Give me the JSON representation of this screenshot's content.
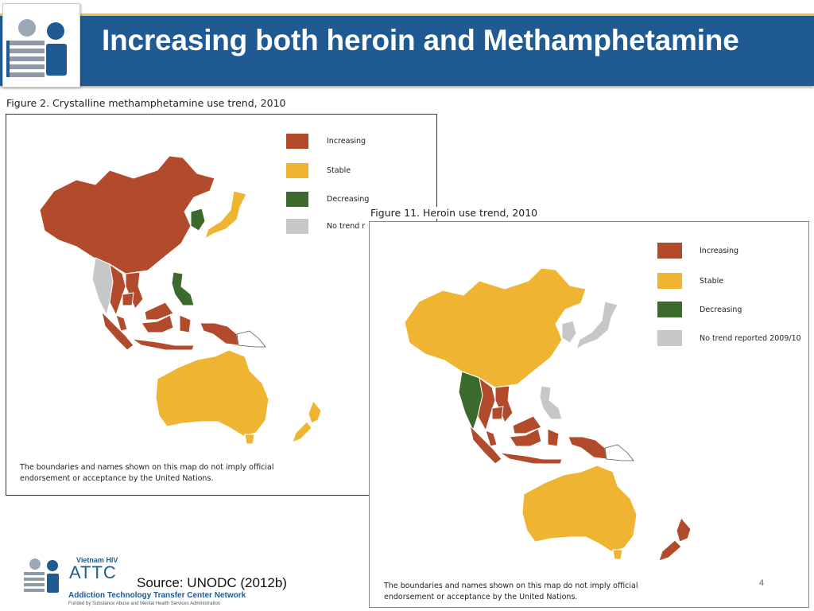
{
  "slide": {
    "title": "Increasing both heroin and Methamphetamine",
    "source": "Source: UNODC (2012b)",
    "page_number": "4"
  },
  "branding": {
    "small_label": "Vietnam HIV",
    "acronym": "ATTC",
    "full_name": "Addiction Technology Transfer Center Network",
    "funding": "Funded by Substance Abuse and Mental Health Services Administration"
  },
  "colors": {
    "header_blue": "#1f5a92",
    "header_stripe": "#e9c24a",
    "increasing": "#b24b2c",
    "stable": "#f0b433",
    "decreasing": "#3b6a2c",
    "no_trend": "#c6c7c9"
  },
  "maps": [
    {
      "caption": "Figure 2. Crystalline methamphetamine use trend, 2010",
      "legend": [
        {
          "key": "increasing",
          "label": "Increasing"
        },
        {
          "key": "stable",
          "label": "Stable"
        },
        {
          "key": "decreasing",
          "label": "Decreasing"
        },
        {
          "key": "no_trend",
          "label": "No trend r"
        }
      ],
      "disclaimer": "The boundaries and names shown on this map do not imply official endorsement or acceptance by the United Nations.",
      "regions": {
        "China": "increasing",
        "Korea": "decreasing",
        "Japan": "stable",
        "Myanmar": "no_trend",
        "Thailand": "increasing",
        "Viet Nam": "increasing",
        "Cambodia": "increasing",
        "Philippines": "decreasing",
        "Malaysia": "increasing",
        "Indonesia": "increasing",
        "Australia": "stable",
        "New Zealand": "stable"
      }
    },
    {
      "caption": "Figure 11. Heroin use trend, 2010",
      "legend": [
        {
          "key": "increasing",
          "label": "Increasing"
        },
        {
          "key": "stable",
          "label": "Stable"
        },
        {
          "key": "decreasing",
          "label": "Decreasing"
        },
        {
          "key": "no_trend",
          "label": "No trend reported 2009/10"
        }
      ],
      "disclaimer": "The boundaries and names shown on this map do not imply official endorsement or acceptance by the United Nations.",
      "regions": {
        "China": "stable",
        "Korea": "no_trend",
        "Japan": "no_trend",
        "Myanmar": "decreasing",
        "Thailand": "increasing",
        "Viet Nam": "increasing",
        "Cambodia": "increasing",
        "Philippines": "no_trend",
        "Malaysia": "increasing",
        "Indonesia": "increasing",
        "Australia": "stable",
        "New Zealand": "increasing"
      }
    }
  ]
}
